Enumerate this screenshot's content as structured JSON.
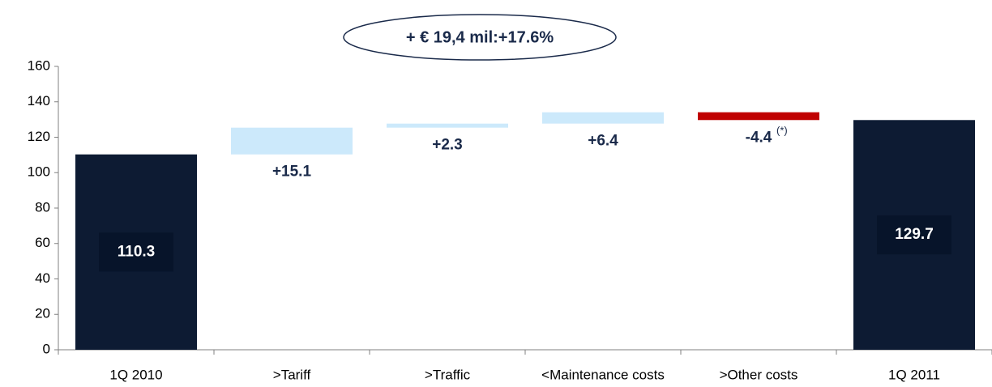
{
  "chart_data": {
    "type": "waterfall",
    "categories": [
      "1Q 2010",
      ">Tariff",
      ">Traffic",
      "<Maintenance costs",
      ">Other costs",
      "1Q 2011"
    ],
    "values": [
      110.3,
      15.1,
      2.3,
      6.4,
      -4.4,
      129.7
    ],
    "value_labels": [
      "110.3",
      "+15.1",
      "+2.3",
      "+6.4",
      "-4.4",
      "129.7"
    ],
    "colors": [
      "#0d1b33",
      "#cce9fb",
      "#cce9fb",
      "#cce9fb",
      "#c00000",
      "#0d1b33"
    ],
    "annotations": [
      "+ € 19,4 mil:+17.6%",
      "(*)"
    ],
    "ylim": [
      0,
      160
    ],
    "yticks": [
      0,
      20,
      40,
      60,
      80,
      100,
      120,
      140,
      160
    ]
  }
}
